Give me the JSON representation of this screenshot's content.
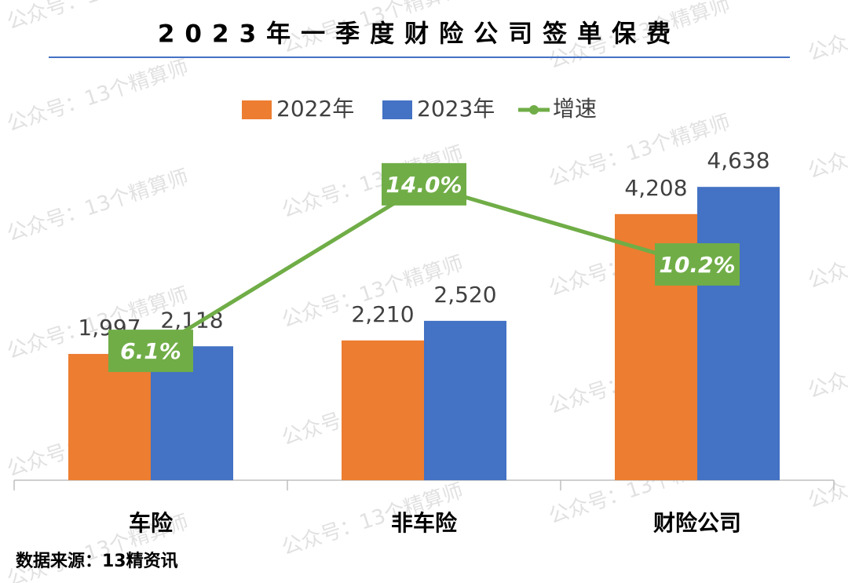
{
  "chart_data": {
    "type": "bar-line",
    "title": "2023年一季度财险公司签单保费",
    "categories": [
      "车险",
      "非车险",
      "财险公司"
    ],
    "series": [
      {
        "name": "2022年",
        "type": "bar",
        "color": "#ed7d31",
        "values": [
          1997,
          2210,
          4208
        ],
        "value_labels": [
          "1,997",
          "2,210",
          "4,208"
        ]
      },
      {
        "name": "2023年",
        "type": "bar",
        "color": "#4472c4",
        "values": [
          2118,
          2520,
          4638
        ],
        "value_labels": [
          "2,118",
          "2,520",
          "4,638"
        ]
      },
      {
        "name": "增速",
        "type": "line",
        "axis": "y2",
        "color": "#70ad47",
        "values": [
          6.1,
          14.0,
          10.2
        ],
        "value_labels": [
          "6.1%",
          "14.0%",
          "10.2%"
        ]
      }
    ],
    "ylim": [
      0,
      5000
    ],
    "y2lim": [
      0,
      15
    ],
    "legend": "top",
    "source": "数据来源：13精资讯",
    "watermark": "公众号：13个精算师"
  }
}
